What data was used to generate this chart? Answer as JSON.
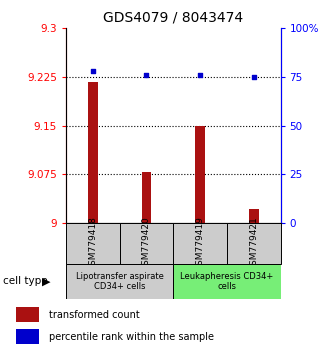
{
  "title": "GDS4079 / 8043474",
  "samples": [
    "GSM779418",
    "GSM779420",
    "GSM779419",
    "GSM779421"
  ],
  "bar_values": [
    9.218,
    9.078,
    9.15,
    9.022
  ],
  "percentile_values": [
    78,
    76,
    76,
    75
  ],
  "bar_color": "#aa1111",
  "dot_color": "#0000cc",
  "ylim_left": [
    9.0,
    9.3
  ],
  "ylim_right": [
    0,
    100
  ],
  "yticks_left": [
    9.0,
    9.075,
    9.15,
    9.225,
    9.3
  ],
  "ytick_labels_left": [
    "9",
    "9.075",
    "9.15",
    "9.225",
    "9.3"
  ],
  "yticks_right": [
    0,
    25,
    50,
    75,
    100
  ],
  "ytick_labels_right": [
    "0",
    "25",
    "50",
    "75",
    "100%"
  ],
  "hlines": [
    9.075,
    9.15,
    9.225
  ],
  "cell_type_label": "cell type",
  "group1_label": "Lipotransfer aspirate\nCD34+ cells",
  "group2_label": "Leukapheresis CD34+\ncells",
  "group1_color": "#cccccc",
  "group2_color": "#77ee77",
  "legend_bar_label": "transformed count",
  "legend_dot_label": "percentile rank within the sample",
  "title_fontsize": 10,
  "tick_fontsize": 7.5,
  "sample_label_fontsize": 6.5
}
